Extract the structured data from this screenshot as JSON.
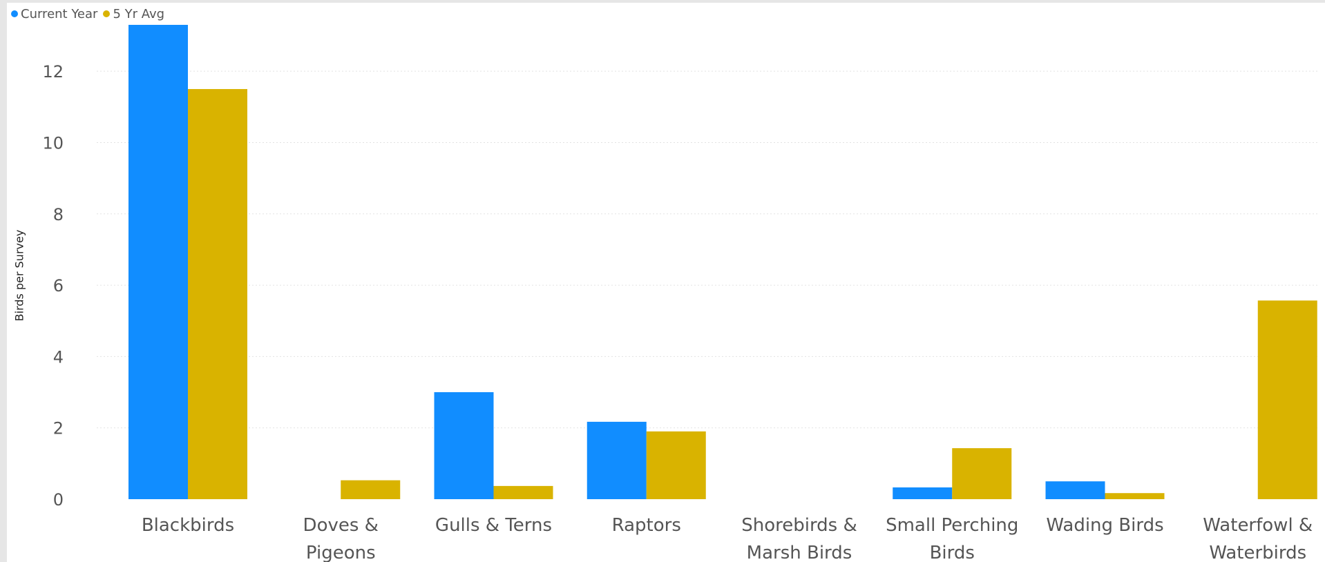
{
  "chart_data": {
    "type": "bar",
    "ylabel": "Birds per Survey",
    "xlabel": "",
    "ylim": [
      0,
      13.3
    ],
    "yticks": [
      0,
      2,
      4,
      6,
      8,
      10,
      12
    ],
    "grid": true,
    "legend_position": "top-left",
    "categories": [
      [
        "Blackbirds"
      ],
      [
        "Doves &",
        "Pigeons"
      ],
      [
        "Gulls & Terns"
      ],
      [
        "Raptors"
      ],
      [
        "Shorebirds &",
        "Marsh Birds"
      ],
      [
        "Small Perching",
        "Birds"
      ],
      [
        "Wading Birds"
      ],
      [
        "Waterfowl &",
        "Waterbirds"
      ]
    ],
    "series": [
      {
        "name": "Current Year",
        "color": "#118dff",
        "values": [
          13.3,
          0,
          3.0,
          2.17,
          0,
          0.33,
          0.5,
          0
        ]
      },
      {
        "name": "5 Yr Avg",
        "color": "#d9b300",
        "values": [
          11.5,
          0.53,
          0.37,
          1.9,
          0,
          1.43,
          0.17,
          5.57
        ]
      }
    ]
  }
}
